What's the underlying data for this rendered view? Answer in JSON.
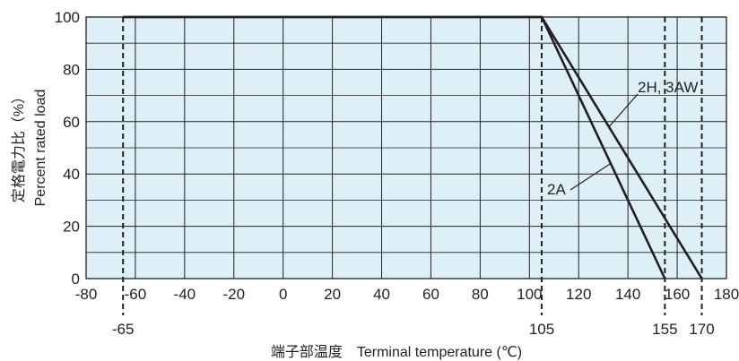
{
  "chart_data": {
    "type": "line",
    "title": "",
    "xlabel": "端子部温度　Terminal temperature (℃)",
    "ylabel_jp": "定格電力比（%）",
    "ylabel_en": "Percent rated load",
    "xlim": [
      -80,
      180
    ],
    "ylim": [
      0,
      100
    ],
    "x_ticks": [
      -80,
      -60,
      -40,
      -20,
      0,
      20,
      40,
      60,
      80,
      100,
      120,
      140,
      160,
      180
    ],
    "y_ticks": [
      0,
      20,
      40,
      60,
      80,
      100
    ],
    "grid": true,
    "series": [
      {
        "name": "2A",
        "x": [
          -65,
          105,
          155
        ],
        "y": [
          100,
          100,
          0
        ]
      },
      {
        "name": "2H, 3AW",
        "x": [
          -65,
          105,
          170
        ],
        "y": [
          100,
          100,
          0
        ]
      }
    ],
    "markers": [
      {
        "x": -65,
        "label": "-65"
      },
      {
        "x": 105,
        "label": "105"
      },
      {
        "x": 155,
        "label": "155"
      },
      {
        "x": 170,
        "label": "170"
      }
    ],
    "annotations": [
      {
        "text": "2A",
        "series": "2A"
      },
      {
        "text": "2H, 3AW",
        "series": "2H, 3AW"
      }
    ]
  },
  "colors": {
    "plot_background": "#ddf0f8",
    "grid": "#231f20",
    "line": "#231f20"
  }
}
